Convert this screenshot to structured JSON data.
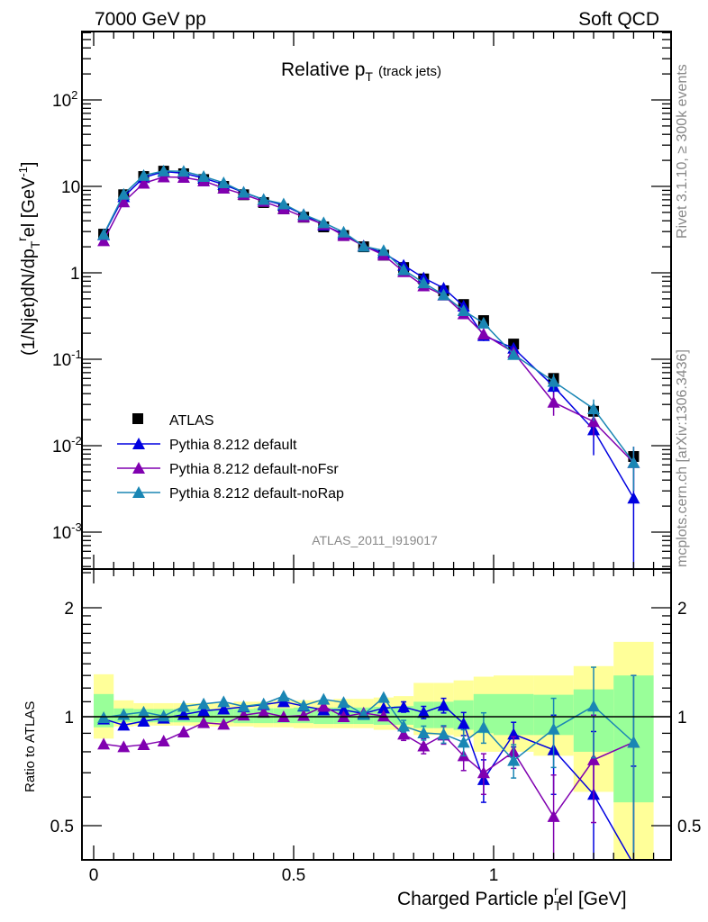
{
  "header": {
    "left": "7000 GeV pp",
    "right": "Soft QCD"
  },
  "side": {
    "rivet": "Rivet 3.1.10, ≥ 300k events",
    "mcplots": "mcplots.cern.ch [arXiv:1306.3436]"
  },
  "colors": {
    "atlas": "#000000",
    "default": "#0000e0",
    "noFsr": "#8000b0",
    "noRap": "#1a86b4",
    "band_inner": "#99ff99",
    "band_outer": "#ffff99"
  },
  "chart_data": [
    {
      "type": "line",
      "title": "Relative p",
      "title_sub": "T",
      "title_suffix": "(track jets)",
      "ylabel": "(1/Njet)dN/dp",
      "ylabel_sub": "T",
      "ylabel_sup": "r",
      "ylabel_rest": "el [GeV",
      "ylabel_unit_sup": "-1",
      "ylabel_close": "]",
      "yscale": "log",
      "ylim": [
        0.0004,
        600
      ],
      "xlim": [
        -0.03,
        1.44
      ],
      "ytick_labels": [
        {
          "base": "10",
          "exp": "-3",
          "v": 0.001
        },
        {
          "base": "10",
          "exp": "-2",
          "v": 0.01
        },
        {
          "base": "10",
          "exp": "-1",
          "v": 0.1
        },
        {
          "base": "1",
          "exp": "",
          "v": 1
        },
        {
          "base": "10",
          "exp": "",
          "v": 10
        },
        {
          "base": "10",
          "exp": "2",
          "v": 100
        }
      ],
      "watermark": "ATLAS_2011_I919017",
      "legend_position": "lower-left",
      "x": [
        0.025,
        0.075,
        0.125,
        0.175,
        0.225,
        0.275,
        0.325,
        0.375,
        0.425,
        0.475,
        0.525,
        0.575,
        0.625,
        0.675,
        0.725,
        0.775,
        0.825,
        0.875,
        0.925,
        0.975,
        1.05,
        1.15,
        1.25,
        1.35
      ],
      "edges": [
        0,
        0.05,
        0.1,
        0.15,
        0.2,
        0.25,
        0.3,
        0.35,
        0.4,
        0.45,
        0.5,
        0.55,
        0.6,
        0.65,
        0.7,
        0.75,
        0.8,
        0.85,
        0.9,
        0.95,
        1.0,
        1.1,
        1.2,
        1.3,
        1.4
      ],
      "atlas": {
        "name": "ATLAS",
        "values": [
          2.8,
          8.0,
          13,
          15,
          14,
          12,
          10,
          8.0,
          6.5,
          5.5,
          4.4,
          3.4,
          2.7,
          2.0,
          1.6,
          1.15,
          0.85,
          0.62,
          0.43,
          0.28,
          0.15,
          0.06,
          0.025,
          0.0075
        ]
      },
      "series_note": "MC values = ATLAS value x ratio"
    },
    {
      "type": "line",
      "ylabel": "Ratio to ATLAS",
      "xlabel": "Charged Particle p",
      "xlabel_sub": "T",
      "xlabel_sup": "r",
      "xlabel_rest": "el [GeV]",
      "yscale": "log",
      "ylim": [
        0.4,
        2.55
      ],
      "ytick_labels": [
        {
          "label": "0.5",
          "v": 0.5
        },
        {
          "label": "1",
          "v": 1
        },
        {
          "label": "2",
          "v": 2
        }
      ],
      "xtick_labels": [
        {
          "label": "0",
          "v": 0
        },
        {
          "label": "0.5",
          "v": 0.5
        },
        {
          "label": "1",
          "v": 1
        }
      ],
      "band": {
        "outer_up": [
          1.31,
          1.11,
          1.09,
          1.09,
          1.09,
          1.09,
          1.09,
          1.1,
          1.1,
          1.11,
          1.11,
          1.11,
          1.12,
          1.12,
          1.13,
          1.14,
          1.24,
          1.24,
          1.26,
          1.29,
          1.3,
          1.3,
          1.38,
          1.61
        ],
        "outer_dn": [
          0.87,
          0.94,
          0.945,
          0.945,
          0.945,
          0.94,
          0.94,
          0.94,
          0.935,
          0.935,
          0.93,
          0.93,
          0.93,
          0.93,
          0.92,
          0.92,
          0.89,
          0.89,
          0.88,
          0.8,
          0.8,
          0.78,
          0.62,
          0.35
        ],
        "inner_up": [
          1.155,
          1.054,
          1.05,
          1.05,
          1.05,
          1.05,
          1.05,
          1.05,
          1.055,
          1.055,
          1.06,
          1.06,
          1.06,
          1.06,
          1.065,
          1.07,
          1.1,
          1.1,
          1.11,
          1.155,
          1.155,
          1.15,
          1.19,
          1.3
        ],
        "inner_dn": [
          0.935,
          0.966,
          0.965,
          0.965,
          0.965,
          0.965,
          0.965,
          0.96,
          0.96,
          0.96,
          0.96,
          0.955,
          0.955,
          0.955,
          0.95,
          0.95,
          0.93,
          0.93,
          0.92,
          0.9,
          0.89,
          0.89,
          0.8,
          0.58
        ]
      },
      "series": [
        {
          "name": "Pythia 8.212 default",
          "key": "default",
          "values": [
            0.985,
            0.948,
            0.972,
            0.991,
            1.014,
            1.038,
            1.05,
            1.064,
            1.08,
            1.1,
            1.07,
            1.044,
            1.044,
            1.02,
            1.057,
            1.064,
            1.028,
            1.074,
            0.957,
            0.67,
            0.895,
            0.81,
            0.61,
            0.33
          ],
          "err": [
            0.02,
            0.02,
            0.02,
            0.02,
            0.02,
            0.02,
            0.02,
            0.02,
            0.02,
            0.02,
            0.02,
            0.02,
            0.02,
            0.025,
            0.03,
            0.035,
            0.04,
            0.05,
            0.07,
            0.09,
            0.07,
            0.2,
            0.3,
            0.4
          ]
        },
        {
          "name": "Pythia 8.212 default-noFsr",
          "key": "noFsr",
          "values": [
            0.84,
            0.826,
            0.837,
            0.857,
            0.907,
            0.963,
            0.953,
            1.01,
            1.028,
            1.0,
            1.008,
            1.068,
            1.0,
            1.024,
            1.004,
            0.895,
            0.83,
            0.89,
            0.78,
            0.7,
            0.8,
            0.53,
            0.76,
            0.85
          ],
          "err": [
            0.02,
            0.02,
            0.02,
            0.02,
            0.02,
            0.02,
            0.02,
            0.02,
            0.02,
            0.02,
            0.02,
            0.02,
            0.02,
            0.025,
            0.03,
            0.035,
            0.04,
            0.05,
            0.07,
            0.09,
            0.08,
            0.16,
            0.25,
            0.45
          ]
        },
        {
          "name": "Pythia 8.212 default-noRap",
          "key": "noRap",
          "values": [
            0.994,
            1.014,
            1.03,
            1.004,
            1.068,
            1.085,
            1.1,
            1.068,
            1.085,
            1.14,
            1.074,
            1.117,
            1.095,
            1.014,
            1.13,
            0.942,
            0.902,
            0.895,
            0.85,
            0.935,
            0.757,
            0.924,
            1.07,
            0.85
          ],
          "err": [
            0.02,
            0.02,
            0.02,
            0.02,
            0.02,
            0.02,
            0.02,
            0.02,
            0.02,
            0.02,
            0.02,
            0.02,
            0.02,
            0.025,
            0.03,
            0.035,
            0.04,
            0.05,
            0.07,
            0.09,
            0.08,
            0.2,
            0.3,
            0.45
          ]
        }
      ]
    }
  ]
}
